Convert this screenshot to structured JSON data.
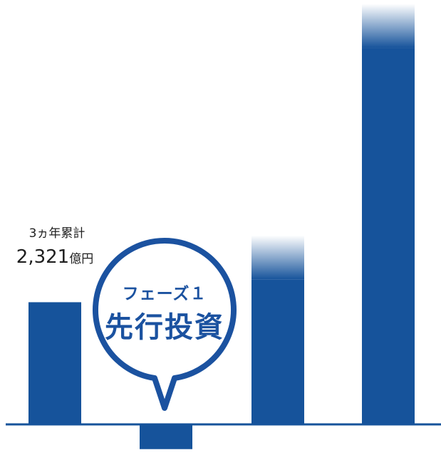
{
  "chart_data": {
    "type": "bar",
    "title": "",
    "xlabel": "",
    "ylabel": "",
    "categories": [
      "",
      "",
      "",
      ""
    ],
    "values": [
      2321,
      -470,
      2750,
      7150
    ],
    "faded_top": [
      false,
      false,
      true,
      true
    ],
    "ylim": [
      -470,
      7900
    ],
    "data_labels": {
      "first_bar": {
        "line1": "3ヵ年累計",
        "number": "2,321",
        "unit": "億円"
      }
    },
    "callout": {
      "line1": "フェーズ１",
      "line2": "先行投資",
      "points_to_bar": 1
    },
    "colors": {
      "bar": "#16539b",
      "axis": "#16539b",
      "callout": "#1b52a0"
    }
  }
}
